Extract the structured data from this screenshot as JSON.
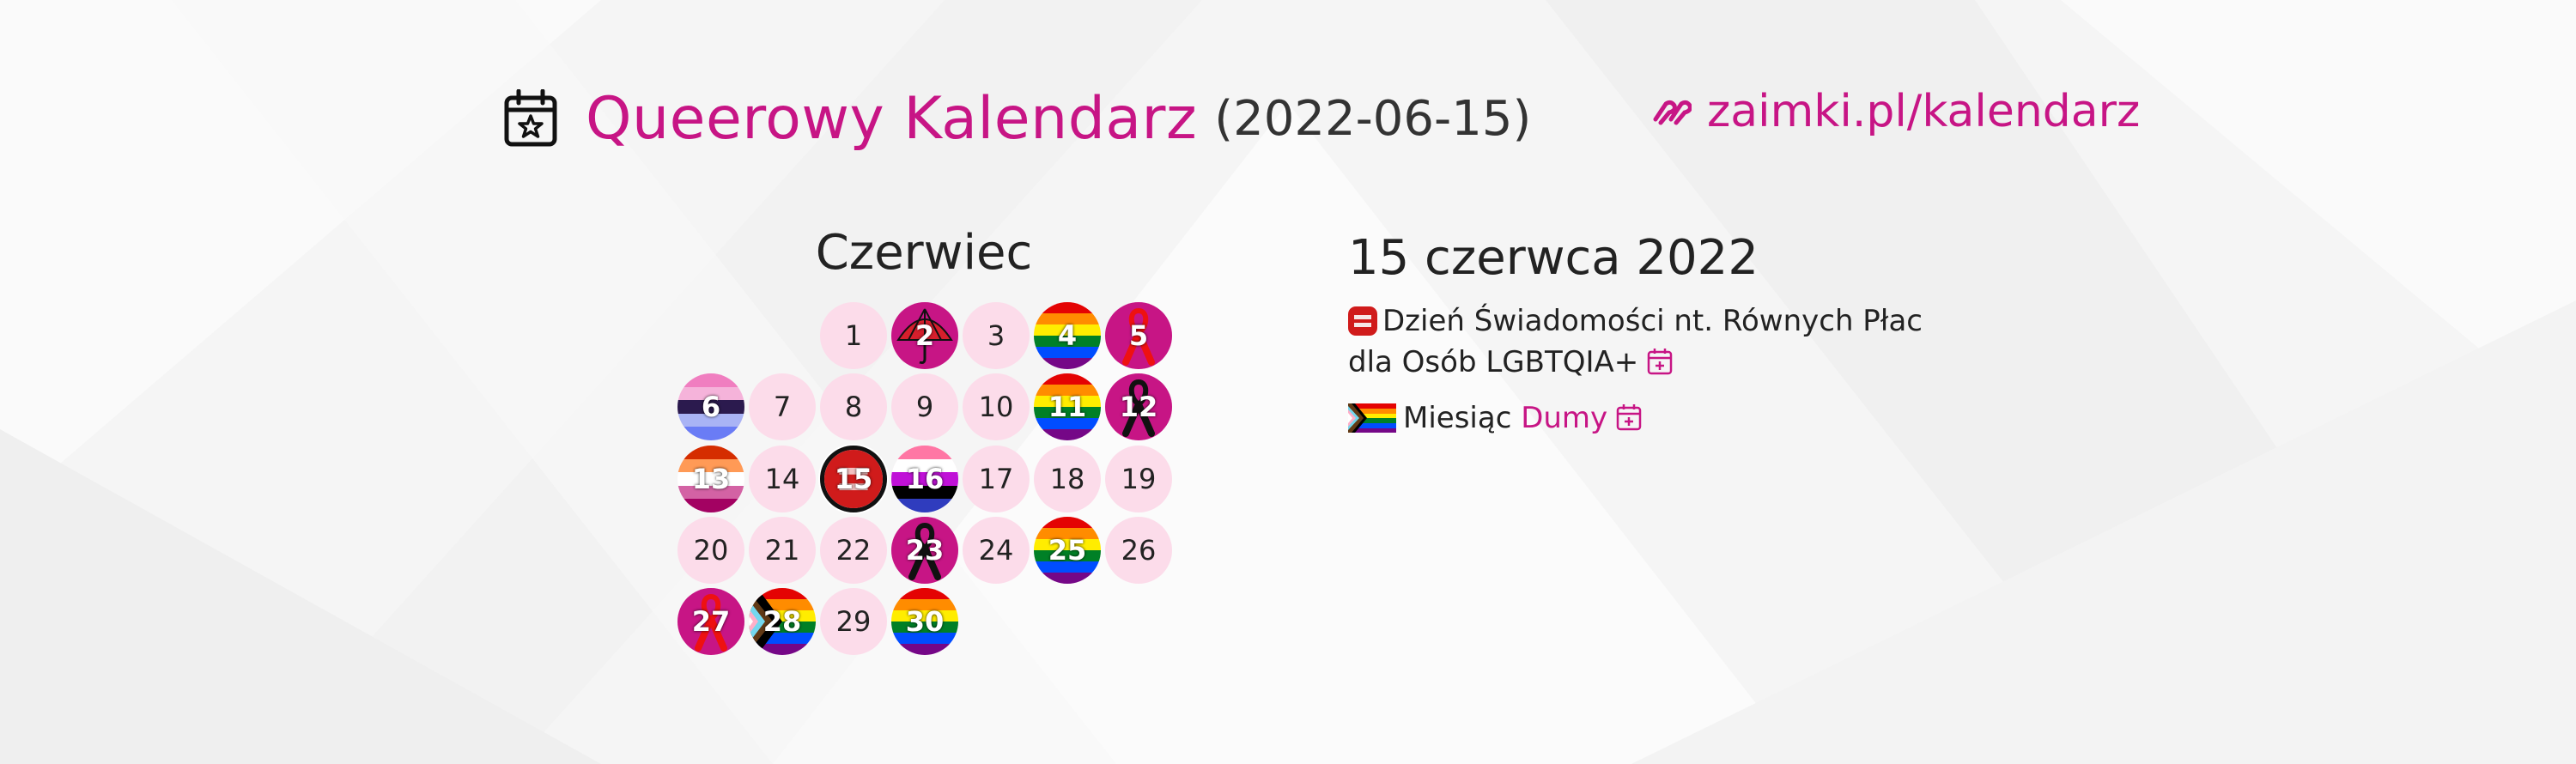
{
  "header": {
    "title": "Queerowy Kalendarz",
    "date": "(2022-06-15)",
    "url": "zaimki.pl/kalendarz",
    "icons": [
      "calendar-star-icon",
      "zaimki-logo-icon"
    ]
  },
  "calendar": {
    "month": "Czerwiec",
    "today": 15,
    "days": [
      {
        "n": "1",
        "flag": "none"
      },
      {
        "n": "2",
        "flag": "umbrella"
      },
      {
        "n": "3",
        "flag": "none"
      },
      {
        "n": "4",
        "flag": "rainbow"
      },
      {
        "n": "5",
        "flag": "red-ribbon"
      },
      {
        "n": "6",
        "flag": "genderfluid-stripes"
      },
      {
        "n": "7",
        "flag": "none"
      },
      {
        "n": "8",
        "flag": "none"
      },
      {
        "n": "9",
        "flag": "none"
      },
      {
        "n": "10",
        "flag": "none"
      },
      {
        "n": "11",
        "flag": "rainbow"
      },
      {
        "n": "12",
        "flag": "black-ribbon"
      },
      {
        "n": "13",
        "flag": "lesbian"
      },
      {
        "n": "14",
        "flag": "none"
      },
      {
        "n": "15",
        "flag": "equality"
      },
      {
        "n": "16",
        "flag": "genderfluid"
      },
      {
        "n": "17",
        "flag": "none"
      },
      {
        "n": "18",
        "flag": "none"
      },
      {
        "n": "19",
        "flag": "none"
      },
      {
        "n": "20",
        "flag": "none"
      },
      {
        "n": "21",
        "flag": "none"
      },
      {
        "n": "22",
        "flag": "none"
      },
      {
        "n": "23",
        "flag": "black-ribbon"
      },
      {
        "n": "24",
        "flag": "none"
      },
      {
        "n": "25",
        "flag": "rainbow"
      },
      {
        "n": "26",
        "flag": "none"
      },
      {
        "n": "27",
        "flag": "red-ribbon"
      },
      {
        "n": "28",
        "flag": "progress"
      },
      {
        "n": "29",
        "flag": "none"
      },
      {
        "n": "30",
        "flag": "rainbow"
      }
    ]
  },
  "details": {
    "date_title": "15 czerwca 2022",
    "events": [
      {
        "text": "Dzień Świadomości nt. Równych Płac dla Osób LGBTQIA+",
        "icon": "equality-icon"
      },
      {
        "prefix": "Miesiąc ",
        "link": "Dumy",
        "icon": "progress-pride-flag-icon"
      }
    ]
  },
  "colors": {
    "accent": "#c71585",
    "day_background": "#fcdcea",
    "text": "#222222"
  }
}
